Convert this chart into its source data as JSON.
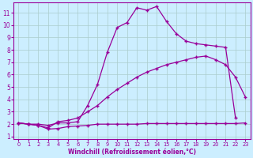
{
  "line1_x": [
    0,
    1,
    2,
    3,
    4,
    5,
    6,
    7,
    8,
    9,
    10,
    11,
    12,
    13,
    14,
    15,
    16,
    17,
    18,
    19,
    20,
    21,
    22
  ],
  "line1_y": [
    2.1,
    2.0,
    2.0,
    1.9,
    2.1,
    2.1,
    2.2,
    3.5,
    5.2,
    7.8,
    9.8,
    10.2,
    11.4,
    11.2,
    11.5,
    10.3,
    9.3,
    8.7,
    8.5,
    8.4,
    8.3,
    8.2,
    2.5
  ],
  "line2_x": [
    0,
    1,
    2,
    3,
    4,
    5,
    6,
    7,
    8,
    9,
    10,
    11,
    12,
    13,
    14,
    15,
    16,
    17,
    18,
    19,
    20,
    21,
    22,
    23
  ],
  "line2_y": [
    2.1,
    2.0,
    1.9,
    1.7,
    2.2,
    2.3,
    2.5,
    3.0,
    3.5,
    4.2,
    4.8,
    5.3,
    5.8,
    6.2,
    6.5,
    6.8,
    7.0,
    7.2,
    7.4,
    7.5,
    7.2,
    6.8,
    5.8,
    4.2
  ],
  "line3_x": [
    0,
    1,
    2,
    3,
    4,
    5,
    6,
    7,
    8,
    9,
    10,
    11,
    12,
    13,
    14,
    15,
    16,
    17,
    18,
    19,
    20,
    21,
    22,
    23
  ],
  "line3_y": [
    2.1,
    2.0,
    1.9,
    1.6,
    1.65,
    1.8,
    1.85,
    1.9,
    2.0,
    2.0,
    2.0,
    2.0,
    2.0,
    2.05,
    2.05,
    2.05,
    2.05,
    2.05,
    2.05,
    2.05,
    2.05,
    2.05,
    2.05,
    2.1
  ],
  "color": "#990099",
  "bg_color": "#cceeff",
  "grid_color": "#aacccc",
  "xlabel": "Windchill (Refroidissement éolien,°C)",
  "xlim_min": -0.5,
  "xlim_max": 23.5,
  "ylim_min": 0.8,
  "ylim_max": 11.8,
  "xticks": [
    0,
    1,
    2,
    3,
    4,
    5,
    6,
    7,
    8,
    9,
    10,
    11,
    12,
    13,
    14,
    15,
    16,
    17,
    18,
    19,
    20,
    21,
    22,
    23
  ],
  "yticks": [
    1,
    2,
    3,
    4,
    5,
    6,
    7,
    8,
    9,
    10,
    11
  ],
  "marker": "+"
}
